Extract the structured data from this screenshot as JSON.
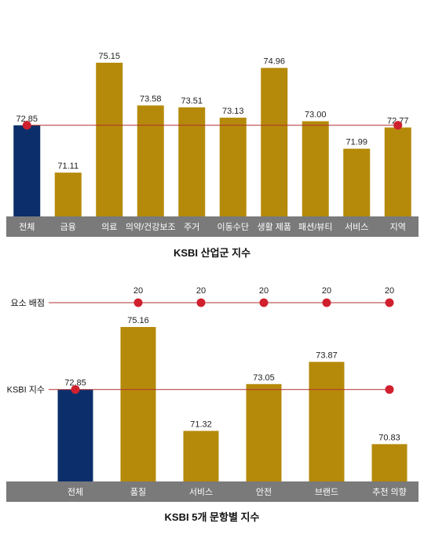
{
  "colors": {
    "overall_bar": "#0c2f6b",
    "bar": "#b58a0a",
    "category_band": "#7a7a7a",
    "reference_line": "#b03030",
    "marker": "#d0202e"
  },
  "chart_data": [
    {
      "type": "bar",
      "title": "KSBI 산업군 지수",
      "categories": [
        "전체",
        "금융",
        "의료",
        "의약/건강보조",
        "주거",
        "이동수단",
        "생활 제품",
        "패션/뷰티",
        "서비스",
        "지역"
      ],
      "values": [
        72.85,
        71.11,
        75.15,
        73.58,
        73.51,
        73.13,
        74.96,
        73.0,
        71.99,
        72.77
      ],
      "value_labels": [
        "72.85",
        "71.11",
        "75.15",
        "73.58",
        "73.51",
        "73.13",
        "74.96",
        "73.00",
        "71.99",
        "72.77"
      ],
      "highlight_index": 0,
      "reference_line": {
        "value": 72.85,
        "marker_indices": [
          0,
          9
        ]
      }
    },
    {
      "type": "bar",
      "title": "KSBI 5개 문항별 지수",
      "categories": [
        "전체",
        "품질",
        "서비스",
        "안전",
        "브랜드",
        "추천 의향"
      ],
      "values": [
        72.85,
        75.16,
        71.32,
        73.05,
        73.87,
        70.83
      ],
      "value_labels": [
        "72.85",
        "75.16",
        "71.32",
        "73.05",
        "73.87",
        "70.83"
      ],
      "highlight_index": 0,
      "reference_line": {
        "label": "KSBI 지수",
        "value": 72.85,
        "marker_indices": [
          0,
          5
        ]
      },
      "weights": {
        "label": "요소 배점",
        "values": [
          "20",
          "20",
          "20",
          "20",
          "20"
        ]
      }
    }
  ]
}
